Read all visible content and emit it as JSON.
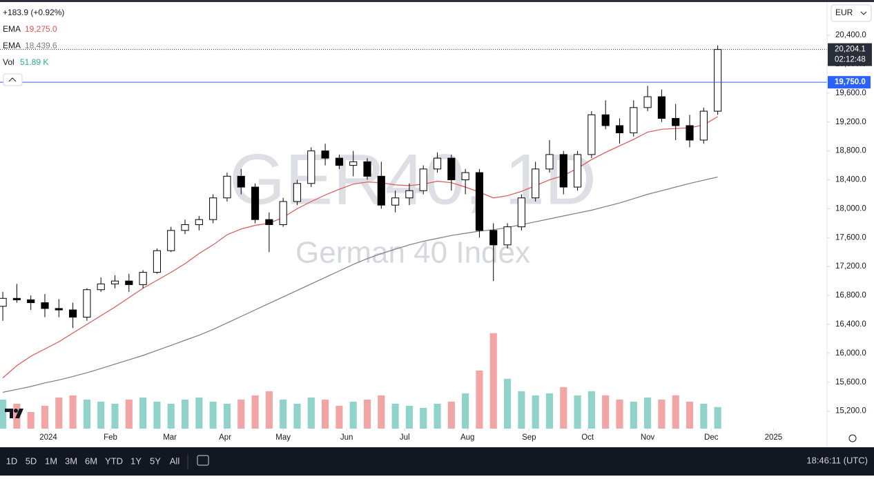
{
  "chart_data": {
    "type": "candlestick",
    "title": "GER40, 1D",
    "subtitle": "German 40 Index",
    "change_label": "+183.9 (+0.92%)",
    "currency": "EUR",
    "categories": [
      null,
      null,
      null,
      null,
      null,
      null,
      null,
      null,
      null,
      null,
      null,
      null,
      null,
      null,
      null,
      null,
      null,
      null,
      null,
      null,
      null,
      null,
      null,
      null,
      null,
      null,
      null,
      null,
      null,
      null,
      null,
      null,
      null,
      null,
      null,
      null,
      null,
      null,
      null,
      null,
      null,
      null,
      null,
      null,
      null,
      null,
      null,
      null,
      null,
      null,
      null,
      null
    ],
    "open": [
      16650,
      16760,
      16740,
      16700,
      16620,
      16600,
      16500,
      16880,
      16960,
      17000,
      16950,
      17120,
      17420,
      17700,
      17780,
      17850,
      18150,
      18450,
      18300,
      17850,
      17780,
      18100,
      18350,
      18800,
      18700,
      18600,
      18650,
      18450,
      18050,
      18150,
      18250,
      18550,
      18700,
      18400,
      18500,
      17700,
      17500,
      17750,
      18150,
      18550,
      18750,
      18300,
      18750,
      19300,
      19150,
      19050,
      19400,
      19550,
      19250,
      19150,
      18950,
      19350
    ],
    "high": [
      16850,
      16960,
      16800,
      16820,
      16750,
      16700,
      16900,
      17050,
      17080,
      17100,
      17150,
      17450,
      17750,
      17850,
      17900,
      18200,
      18500,
      18550,
      18350,
      17950,
      18150,
      18400,
      18850,
      18900,
      18750,
      18800,
      18700,
      18650,
      18250,
      18350,
      18600,
      18780,
      18750,
      18550,
      18550,
      17800,
      17800,
      18200,
      18650,
      18950,
      18800,
      18800,
      19350,
      19500,
      19250,
      19500,
      19700,
      19650,
      19450,
      19300,
      19400,
      20260
    ],
    "low": [
      16450,
      16700,
      16600,
      16500,
      16500,
      16350,
      16450,
      16850,
      16900,
      16850,
      16900,
      17100,
      17400,
      17650,
      17700,
      17800,
      18100,
      18200,
      17800,
      17400,
      17750,
      18050,
      18300,
      18600,
      18550,
      18450,
      18400,
      18000,
      17950,
      18050,
      18200,
      18500,
      18250,
      18200,
      17600,
      17000,
      17450,
      17700,
      18100,
      18500,
      18200,
      18250,
      18700,
      19100,
      18900,
      19000,
      19350,
      19200,
      18950,
      18850,
      18900,
      19300
    ],
    "close": [
      16760,
      16740,
      16700,
      16620,
      16600,
      16500,
      16880,
      16960,
      17000,
      16950,
      17120,
      17420,
      17700,
      17780,
      17850,
      18150,
      18450,
      18300,
      17850,
      17780,
      18100,
      18350,
      18800,
      18700,
      18600,
      18650,
      18450,
      18050,
      18150,
      18250,
      18550,
      18700,
      18400,
      18500,
      17700,
      17500,
      17750,
      18150,
      18550,
      18750,
      18300,
      18750,
      19300,
      19150,
      19050,
      19400,
      19550,
      19250,
      19150,
      18950,
      19350,
      20204.1
    ],
    "up_color": "#ffffff",
    "down_color": "#000000",
    "series": [
      {
        "name": "EMA",
        "color": "#e05252",
        "last_label": "19,275.0",
        "values": [
          15660,
          15830,
          15960,
          16060,
          16160,
          16280,
          16400,
          16520,
          16640,
          16770,
          16900,
          17010,
          17120,
          17240,
          17380,
          17500,
          17640,
          17720,
          17770,
          17800,
          17880,
          18000,
          18100,
          18190,
          18270,
          18340,
          18370,
          18360,
          18330,
          18320,
          18340,
          18380,
          18360,
          18300,
          18230,
          18150,
          18180,
          18240,
          18320,
          18400,
          18460,
          18560,
          18680,
          18780,
          18870,
          18960,
          19060,
          19100,
          19110,
          19120,
          19160,
          19275
        ]
      },
      {
        "name": "EMA",
        "color": "#787b86",
        "last_label": "18,439.6",
        "values": [
          15460,
          15500,
          15540,
          15590,
          15630,
          15680,
          15730,
          15790,
          15850,
          15910,
          15970,
          16040,
          16110,
          16180,
          16250,
          16330,
          16420,
          16510,
          16600,
          16690,
          16780,
          16870,
          16960,
          17050,
          17140,
          17230,
          17310,
          17380,
          17440,
          17500,
          17550,
          17590,
          17630,
          17660,
          17690,
          17710,
          17740,
          17780,
          17820,
          17860,
          17900,
          17940,
          17980,
          18030,
          18080,
          18140,
          18200,
          18250,
          18300,
          18350,
          18395,
          18439.6
        ]
      }
    ],
    "volume": {
      "name": "Vol",
      "last_label": "51.89 K",
      "up_color": "#8fd3cb",
      "down_color": "#f2a5a5",
      "ylim": [
        0,
        266
      ],
      "values": [
        70,
        60,
        40,
        55,
        75,
        80,
        70,
        65,
        60,
        70,
        75,
        65,
        60,
        70,
        75,
        65,
        60,
        70,
        80,
        90,
        70,
        60,
        75,
        70,
        55,
        65,
        70,
        80,
        60,
        55,
        50,
        60,
        65,
        85,
        140,
        230,
        120,
        90,
        80,
        85,
        100,
        80,
        90,
        80,
        70,
        65,
        75,
        70,
        80,
        65,
        60,
        51.89
      ]
    },
    "xlim": [
      -0.2,
      58.8
    ],
    "ylim": [
      14700,
      20850
    ],
    "xticks": [
      {
        "value": 3.25,
        "label": "2024"
      },
      {
        "value": 7.68,
        "label": "Feb"
      },
      {
        "value": 11.92,
        "label": "Mar"
      },
      {
        "value": 15.86,
        "label": "Apr"
      },
      {
        "value": 20.0,
        "label": "May"
      },
      {
        "value": 24.53,
        "label": "Jun"
      },
      {
        "value": 28.67,
        "label": "Jul"
      },
      {
        "value": 33.15,
        "label": "Aug"
      },
      {
        "value": 37.54,
        "label": "Sep"
      },
      {
        "value": 41.72,
        "label": "Oct"
      },
      {
        "value": 46.0,
        "label": "Nov"
      },
      {
        "value": 50.54,
        "label": "Dec"
      },
      {
        "value": 54.98,
        "label": "2025"
      }
    ],
    "yticks": [
      {
        "value": 15200,
        "label": "15,200.0"
      },
      {
        "value": 15600,
        "label": "15,600.0"
      },
      {
        "value": 16000,
        "label": "16,000.0"
      },
      {
        "value": 16400,
        "label": "16,400.0"
      },
      {
        "value": 16800,
        "label": "16,800.0"
      },
      {
        "value": 17200,
        "label": "17,200.0"
      },
      {
        "value": 17600,
        "label": "17,600.0"
      },
      {
        "value": 18000,
        "label": "18,000.0"
      },
      {
        "value": 18400,
        "label": "18,400.0"
      },
      {
        "value": 18800,
        "label": "18,800.0"
      },
      {
        "value": 19200,
        "label": "19,200.0"
      },
      {
        "value": 19600,
        "label": "19,600.0"
      },
      {
        "value": 20000,
        "label": "20,000.0"
      },
      {
        "value": 20400,
        "label": "20,400.0"
      }
    ],
    "level_line": {
      "value": 19750,
      "label": "19,750.0",
      "color": "#2962ff"
    },
    "last_price": {
      "value": 20204.1,
      "label": "20,204.1",
      "countdown": "02:12:48"
    },
    "grid": false
  },
  "toolbar": {
    "ranges": [
      "1D",
      "5D",
      "1M",
      "3M",
      "6M",
      "YTD",
      "1Y",
      "5Y",
      "All"
    ],
    "clock": "18:46:11 (UTC)"
  }
}
